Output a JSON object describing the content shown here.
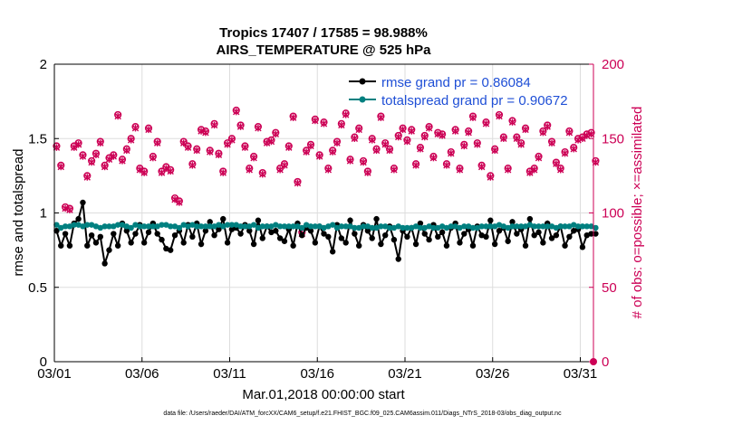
{
  "chart_data": {
    "type": "line",
    "title": "Tropics 17407 / 17585 = 98.988%",
    "subtitle": "AIRS_TEMPERATURE @ 525 hPa",
    "xlabel": "Mar.01,2018 00:00:00 start",
    "ylabel_left": "rmse and totalspread",
    "ylabel_right": "# of obs: o=possible; ×=assimilated",
    "footer": "data file: /Users/raeder/DAI/ATM_forcXX/CAM6_setup/f.e21.FHIST_BGC.f09_025.CAM6assim.011/Diags_NTrS_2018-03/obs_diag_output.nc",
    "x_ticks": [
      "03/01",
      "03/06",
      "03/11",
      "03/16",
      "03/21",
      "03/26",
      "03/31"
    ],
    "x_tick_days": [
      0,
      5,
      10,
      15,
      20,
      25,
      30
    ],
    "xlim": [
      0,
      30.75
    ],
    "ylim_left": [
      0,
      2
    ],
    "y_ticks_left": [
      "0",
      "0.5",
      "1",
      "1.5",
      "2"
    ],
    "ylim_right": [
      0,
      200
    ],
    "y_ticks_right": [
      "0",
      "50",
      "100",
      "150",
      "200"
    ],
    "n_points": 124,
    "legend_position": "top-right",
    "colors": {
      "rmse": "#000000",
      "spread": "#008080",
      "obs": "#cc0055",
      "legend_text": "#1f4fd6",
      "grid": "#dddddd"
    },
    "series": [
      {
        "name": "rmse grand pr = 0.86084",
        "axis": "left",
        "values": [
          0.88,
          0.78,
          0.86,
          0.78,
          0.93,
          0.96,
          1.07,
          0.78,
          0.85,
          0.8,
          0.84,
          0.66,
          0.75,
          0.86,
          0.78,
          0.93,
          0.88,
          0.8,
          0.86,
          0.92,
          0.8,
          0.87,
          0.93,
          0.86,
          0.82,
          0.76,
          0.75,
          0.85,
          0.88,
          0.8,
          0.92,
          0.84,
          0.93,
          0.79,
          0.88,
          0.94,
          0.85,
          0.89,
          0.96,
          0.8,
          0.89,
          0.9,
          0.86,
          0.92,
          0.88,
          0.79,
          0.95,
          0.83,
          0.91,
          0.87,
          0.88,
          0.83,
          0.81,
          0.89,
          0.78,
          0.93,
          0.85,
          0.9,
          0.88,
          0.8,
          0.91,
          0.86,
          0.84,
          0.74,
          0.92,
          0.83,
          0.8,
          0.95,
          0.86,
          0.78,
          0.92,
          0.88,
          0.83,
          0.96,
          0.79,
          0.85,
          0.91,
          0.82,
          0.69,
          0.88,
          0.84,
          0.9,
          0.79,
          0.93,
          0.86,
          0.82,
          0.92,
          0.84,
          0.87,
          0.78,
          0.9,
          0.93,
          0.8,
          0.86,
          0.89,
          0.78,
          0.91,
          0.85,
          0.84,
          0.95,
          0.79,
          0.88,
          0.9,
          0.81,
          0.94,
          0.86,
          0.89,
          0.78,
          0.96,
          0.85,
          0.87,
          0.8,
          0.93,
          0.83,
          0.85,
          0.91,
          0.78,
          0.84,
          0.88,
          0.89,
          0.77,
          0.85,
          0.86,
          0.86
        ]
      },
      {
        "name": "totalspread grand pr = 0.90672",
        "axis": "left",
        "values": [
          0.92,
          0.9,
          0.91,
          0.91,
          0.92,
          0.92,
          0.91,
          0.92,
          0.92,
          0.91,
          0.9,
          0.91,
          0.91,
          0.91,
          0.92,
          0.92,
          0.91,
          0.9,
          0.92,
          0.91,
          0.91,
          0.91,
          0.91,
          0.91,
          0.92,
          0.92,
          0.91,
          0.91,
          0.9,
          0.92,
          0.91,
          0.92,
          0.91,
          0.91,
          0.91,
          0.91,
          0.91,
          0.92,
          0.91,
          0.92,
          0.92,
          0.92,
          0.91,
          0.91,
          0.91,
          0.92,
          0.9,
          0.91,
          0.91,
          0.91,
          0.92,
          0.91,
          0.91,
          0.91,
          0.91,
          0.91,
          0.9,
          0.92,
          0.91,
          0.91,
          0.91,
          0.9,
          0.91,
          0.92,
          0.9,
          0.91,
          0.91,
          0.91,
          0.9,
          0.9,
          0.91,
          0.91,
          0.9,
          0.9,
          0.91,
          0.91,
          0.9,
          0.9,
          0.91,
          0.9,
          0.9,
          0.9,
          0.91,
          0.9,
          0.9,
          0.91,
          0.9,
          0.9,
          0.91,
          0.9,
          0.91,
          0.91,
          0.9,
          0.91,
          0.91,
          0.9,
          0.9,
          0.91,
          0.91,
          0.91,
          0.91,
          0.92,
          0.91,
          0.9,
          0.91,
          0.91,
          0.91,
          0.91,
          0.92,
          0.91,
          0.91,
          0.91,
          0.91,
          0.91,
          0.9,
          0.91,
          0.91,
          0.91,
          0.92,
          0.91,
          0.91,
          0.91,
          0.91,
          0.9
        ]
      },
      {
        "name": "# obs possible",
        "axis": "right",
        "marker": "o",
        "values": [
          145,
          132,
          104,
          103,
          145,
          147,
          139,
          125,
          135,
          140,
          148,
          132,
          137,
          139,
          166,
          136,
          143,
          150,
          158,
          130,
          128,
          157,
          138,
          148,
          128,
          131,
          129,
          110,
          108,
          148,
          145,
          133,
          143,
          156,
          155,
          142,
          160,
          140,
          128,
          147,
          150,
          169,
          159,
          145,
          130,
          138,
          158,
          127,
          148,
          149,
          154,
          130,
          133,
          145,
          165,
          121,
          87,
          142,
          146,
          163,
          139,
          161,
          130,
          142,
          148,
          160,
          167,
          136,
          151,
          157,
          135,
          128,
          150,
          143,
          165,
          147,
          143,
          130,
          152,
          157,
          149,
          156,
          133,
          144,
          152,
          158,
          138,
          154,
          153,
          133,
          141,
          156,
          130,
          146,
          155,
          165,
          147,
          132,
          161,
          125,
          143,
          166,
          151,
          130,
          162,
          151,
          147,
          157,
          128,
          130,
          138,
          155,
          159,
          148,
          134,
          130,
          141,
          155,
          144,
          150,
          151,
          153,
          154,
          135
        ]
      },
      {
        "name": "# obs assimilated",
        "axis": "right",
        "marker": "x",
        "values": [
          144,
          131,
          103,
          102,
          144,
          146,
          138,
          124,
          134,
          139,
          147,
          131,
          136,
          138,
          165,
          135,
          142,
          149,
          157,
          129,
          127,
          156,
          137,
          147,
          127,
          130,
          128,
          109,
          107,
          147,
          144,
          132,
          142,
          155,
          154,
          141,
          159,
          139,
          127,
          146,
          149,
          168,
          158,
          144,
          129,
          137,
          157,
          126,
          147,
          148,
          153,
          129,
          132,
          144,
          164,
          120,
          86,
          141,
          145,
          162,
          138,
          160,
          129,
          141,
          147,
          159,
          166,
          135,
          150,
          156,
          134,
          127,
          149,
          142,
          164,
          146,
          142,
          129,
          151,
          156,
          148,
          155,
          132,
          143,
          151,
          157,
          137,
          153,
          152,
          132,
          140,
          155,
          129,
          145,
          154,
          164,
          146,
          131,
          160,
          124,
          142,
          165,
          150,
          129,
          161,
          150,
          146,
          156,
          127,
          129,
          137,
          154,
          158,
          147,
          133,
          129,
          140,
          154,
          143,
          149,
          150,
          152,
          153,
          134
        ]
      }
    ]
  }
}
